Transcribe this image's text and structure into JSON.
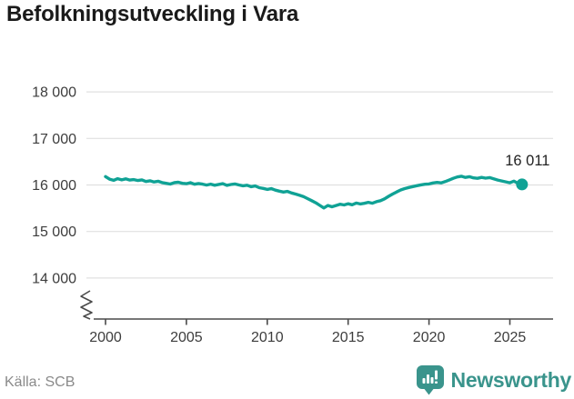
{
  "title": "Befolkningsutveckling i Vara",
  "source": "Källa: SCB",
  "logo": {
    "text": "Newsworthy"
  },
  "colors": {
    "line": "#10a295",
    "grid": "#e0e0e0",
    "axis_text": "#3d3d3d",
    "axis_line": "#4a4a4a",
    "title_text": "#1a1a1a",
    "source_text": "#8a8a8a",
    "logo": "#3a948c",
    "end_label_text": "#222222"
  },
  "chart_data": {
    "type": "line",
    "title": "Befolkningsutveckling i Vara",
    "xlabel": "",
    "ylabel": "",
    "grid": "horizontal",
    "axis_break_y": true,
    "legend": "none",
    "xlim": [
      1999.3,
      2027.6
    ],
    "ylim": [
      13800,
      18200
    ],
    "yticks": [
      {
        "value": 18000,
        "label": "18 000"
      },
      {
        "value": 17000,
        "label": "17 000"
      },
      {
        "value": 16000,
        "label": "16 000"
      },
      {
        "value": 15000,
        "label": "15 000"
      },
      {
        "value": 14000,
        "label": "14 000"
      }
    ],
    "xticks": [
      {
        "value": 2000,
        "label": "2000"
      },
      {
        "value": 2005,
        "label": "2005"
      },
      {
        "value": 2010,
        "label": "2010"
      },
      {
        "value": 2015,
        "label": "2015"
      },
      {
        "value": 2020,
        "label": "2020"
      },
      {
        "value": 2025,
        "label": "2025"
      }
    ],
    "end_label": "16 011",
    "end_value": 16011,
    "series": [
      {
        "color": "#10a295",
        "points": [
          [
            2000,
            16180
          ],
          [
            2000.25,
            16125
          ],
          [
            2000.5,
            16100
          ],
          [
            2000.75,
            16135
          ],
          [
            2001,
            16110
          ],
          [
            2001.25,
            16130
          ],
          [
            2001.5,
            16105
          ],
          [
            2001.75,
            16115
          ],
          [
            2002,
            16095
          ],
          [
            2002.25,
            16110
          ],
          [
            2002.5,
            16075
          ],
          [
            2002.75,
            16090
          ],
          [
            2003,
            16065
          ],
          [
            2003.25,
            16080
          ],
          [
            2003.5,
            16050
          ],
          [
            2003.75,
            16035
          ],
          [
            2004,
            16020
          ],
          [
            2004.25,
            16048
          ],
          [
            2004.5,
            16058
          ],
          [
            2004.75,
            16035
          ],
          [
            2005,
            16028
          ],
          [
            2005.25,
            16048
          ],
          [
            2005.5,
            16015
          ],
          [
            2005.75,
            16032
          ],
          [
            2006,
            16018
          ],
          [
            2006.25,
            15998
          ],
          [
            2006.5,
            16018
          ],
          [
            2006.75,
            15995
          ],
          [
            2007,
            16012
          ],
          [
            2007.25,
            16028
          ],
          [
            2007.5,
            15992
          ],
          [
            2007.75,
            16010
          ],
          [
            2008,
            16022
          ],
          [
            2008.25,
            16000
          ],
          [
            2008.5,
            15982
          ],
          [
            2008.75,
            15995
          ],
          [
            2009,
            15962
          ],
          [
            2009.25,
            15978
          ],
          [
            2009.5,
            15942
          ],
          [
            2009.75,
            15925
          ],
          [
            2010,
            15905
          ],
          [
            2010.25,
            15922
          ],
          [
            2010.5,
            15888
          ],
          [
            2010.75,
            15868
          ],
          [
            2011,
            15848
          ],
          [
            2011.25,
            15862
          ],
          [
            2011.5,
            15828
          ],
          [
            2011.75,
            15805
          ],
          [
            2012,
            15778
          ],
          [
            2012.25,
            15748
          ],
          [
            2012.5,
            15705
          ],
          [
            2012.75,
            15662
          ],
          [
            2013,
            15618
          ],
          [
            2013.25,
            15560
          ],
          [
            2013.5,
            15505
          ],
          [
            2013.75,
            15558
          ],
          [
            2014,
            15532
          ],
          [
            2014.25,
            15558
          ],
          [
            2014.5,
            15585
          ],
          [
            2014.75,
            15570
          ],
          [
            2015,
            15595
          ],
          [
            2015.25,
            15575
          ],
          [
            2015.5,
            15612
          ],
          [
            2015.75,
            15592
          ],
          [
            2016,
            15606
          ],
          [
            2016.25,
            15626
          ],
          [
            2016.5,
            15608
          ],
          [
            2016.75,
            15640
          ],
          [
            2017,
            15662
          ],
          [
            2017.25,
            15702
          ],
          [
            2017.5,
            15755
          ],
          [
            2017.75,
            15805
          ],
          [
            2018,
            15850
          ],
          [
            2018.25,
            15892
          ],
          [
            2018.5,
            15922
          ],
          [
            2018.75,
            15945
          ],
          [
            2019,
            15965
          ],
          [
            2019.25,
            15985
          ],
          [
            2019.5,
            16002
          ],
          [
            2019.75,
            16015
          ],
          [
            2020,
            16022
          ],
          [
            2020.25,
            16042
          ],
          [
            2020.5,
            16055
          ],
          [
            2020.75,
            16045
          ],
          [
            2021,
            16072
          ],
          [
            2021.25,
            16105
          ],
          [
            2021.5,
            16142
          ],
          [
            2021.75,
            16172
          ],
          [
            2022,
            16188
          ],
          [
            2022.25,
            16162
          ],
          [
            2022.5,
            16178
          ],
          [
            2022.75,
            16152
          ],
          [
            2023,
            16142
          ],
          [
            2023.25,
            16162
          ],
          [
            2023.5,
            16146
          ],
          [
            2023.75,
            16158
          ],
          [
            2024,
            16132
          ],
          [
            2024.25,
            16106
          ],
          [
            2024.5,
            16086
          ],
          [
            2024.75,
            16066
          ],
          [
            2025,
            16046
          ],
          [
            2025.25,
            16082
          ],
          [
            2025.5,
            16035
          ],
          [
            2025.75,
            16011
          ]
        ]
      }
    ]
  }
}
